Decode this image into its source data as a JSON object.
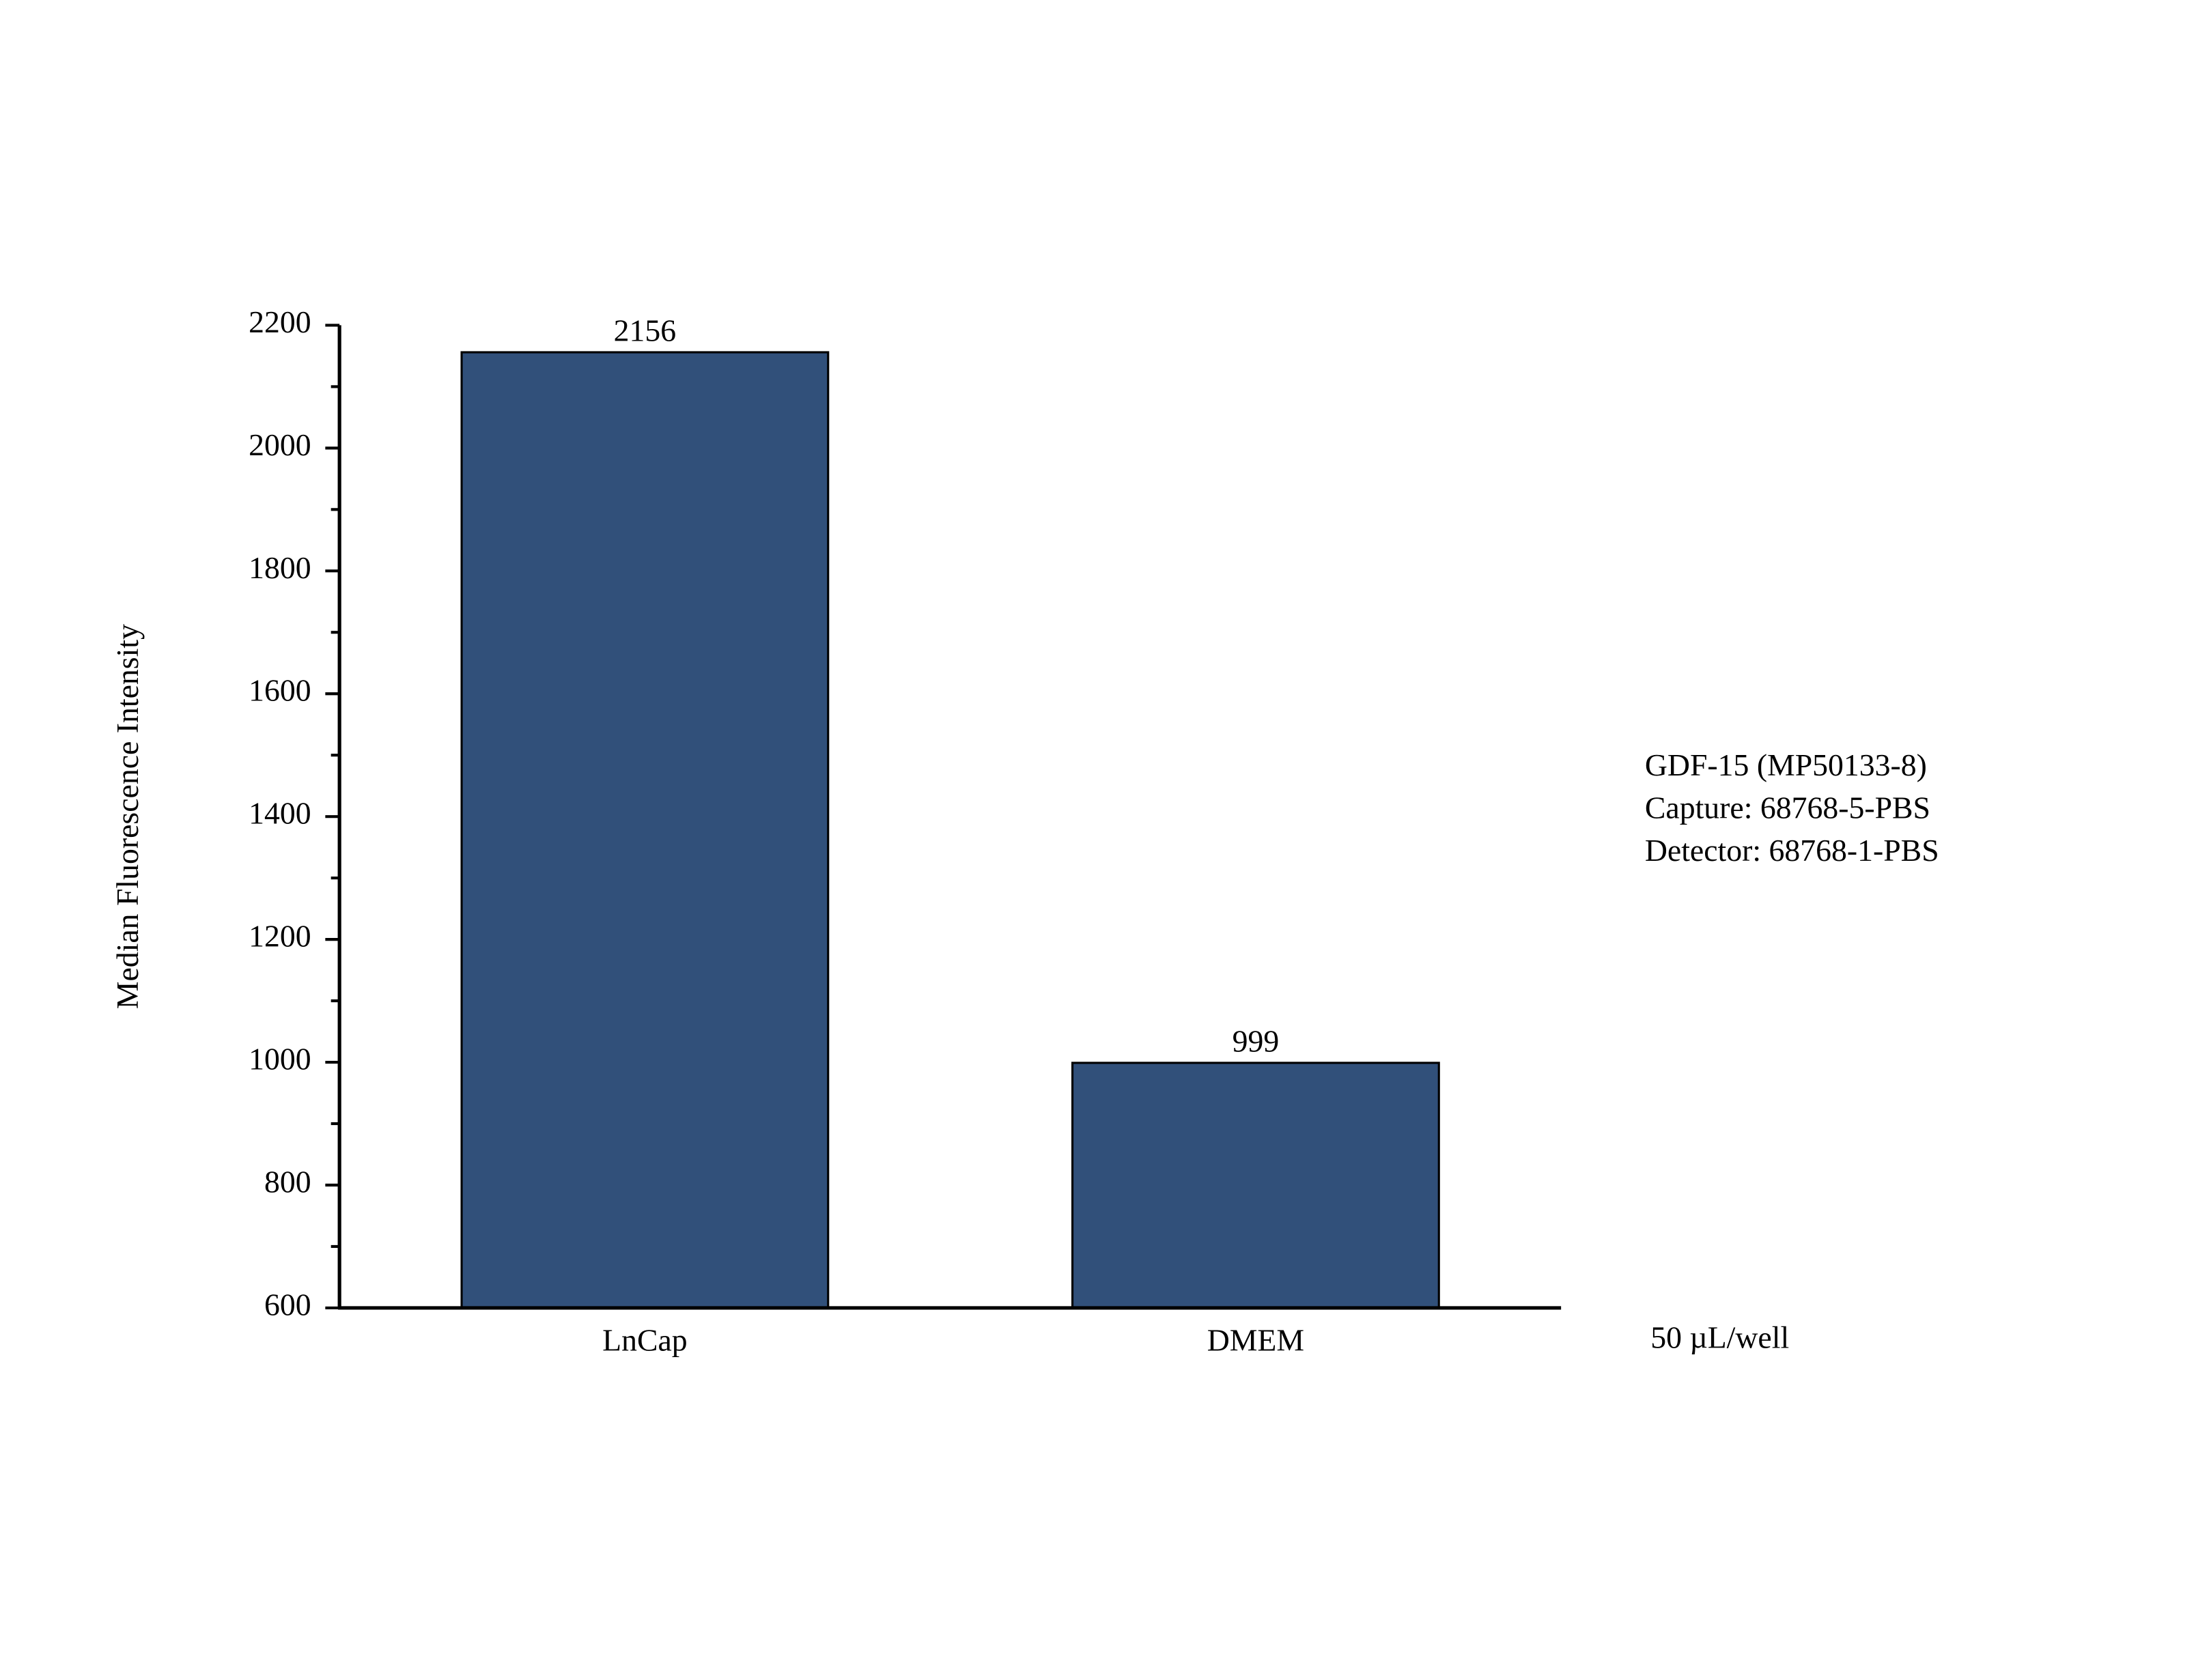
{
  "chart_data": {
    "type": "bar",
    "y_label": "Median Fluorescence Intensity",
    "x_label": "50 µL/well",
    "annotations": [
      "GDF-15 (MP50133-8)",
      "Capture: 68768-5-PBS",
      "Detector: 68768-1-PBS"
    ],
    "categories": [
      "LnCap",
      "DMEM"
    ],
    "values": [
      2156,
      999
    ],
    "color": "#31507a",
    "ylim": [
      600,
      2200
    ],
    "yticks": [
      600,
      800,
      1000,
      1200,
      1400,
      1600,
      1800,
      2000,
      2200
    ],
    "minor_yticks": [
      700,
      900,
      1100,
      1300,
      1500,
      1700,
      1900,
      2100
    ],
    "grid": false
  }
}
